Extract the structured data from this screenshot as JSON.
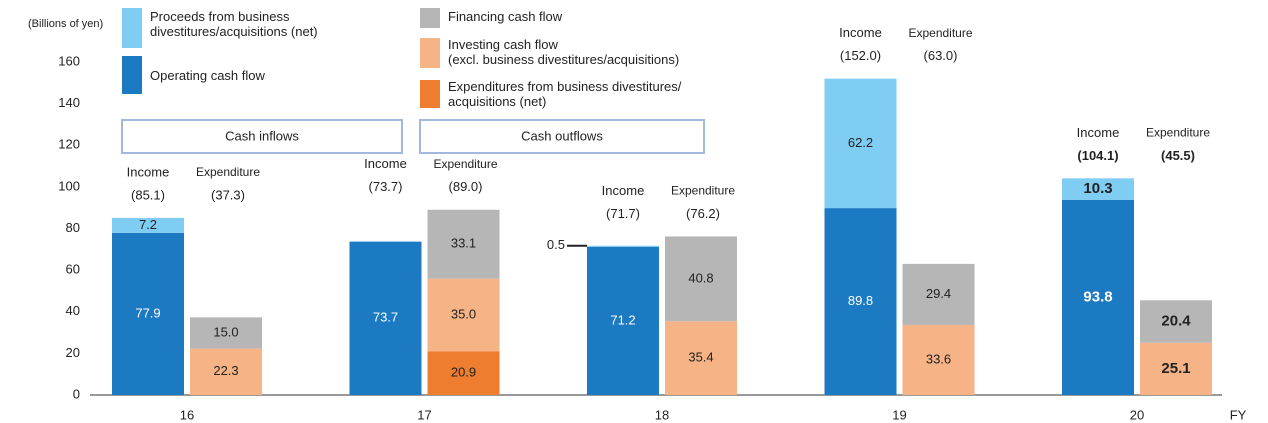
{
  "chart_data": {
    "type": "grouped_stacked_bar",
    "y_label": "(Billions of yen)",
    "x_label": "FY",
    "categories": [
      "16",
      "17",
      "18",
      "19",
      "20"
    ],
    "emphasized": "20",
    "ylim": [
      0,
      160
    ],
    "yticks": [
      0,
      20,
      40,
      60,
      80,
      100,
      120,
      140,
      160
    ],
    "stacks": {
      "income": "Income",
      "expenditure": "Expenditure"
    },
    "stack_boxes": {
      "income": "Cash inflows",
      "expenditure": "Cash outflows"
    },
    "income_totals": [
      85.1,
      73.7,
      71.7,
      152.0,
      104.1
    ],
    "income_total_labels": [
      "(85.1)",
      "(73.7)",
      "(71.7)",
      "(152.0)",
      "(104.1)"
    ],
    "expenditure_totals": [
      37.3,
      89.0,
      76.2,
      63.0,
      45.5
    ],
    "expenditure_total_labels": [
      "(37.3)",
      "(89.0)",
      "(76.2)",
      "(63.0)",
      "(45.5)"
    ],
    "series": [
      {
        "name": "Proceeds from business\ndivestitures/acquisitions (net)",
        "stack": "income",
        "color": "#7fcdf2",
        "text_color": "#222222",
        "values": [
          7.2,
          null,
          0.5,
          62.2,
          10.3
        ],
        "value_labels": [
          "7.2",
          null,
          "0.5",
          "62.2",
          "10.3"
        ]
      },
      {
        "name": "Operating cash flow",
        "stack": "income",
        "color": "#1c7ac3",
        "text_color": "#ffffff",
        "values": [
          77.9,
          73.7,
          71.2,
          89.8,
          93.8
        ],
        "value_labels": [
          "77.9",
          "73.7",
          "71.2",
          "89.8",
          "93.8"
        ]
      },
      {
        "name": "Financing cash flow",
        "stack": "expenditure",
        "color": "#b6b6b6",
        "text_color": "#222222",
        "values": [
          15.0,
          33.1,
          40.8,
          29.4,
          20.4
        ],
        "value_labels": [
          "15.0",
          "33.1",
          "40.8",
          "29.4",
          "20.4"
        ]
      },
      {
        "name": "Investing cash flow\n(excl. business divestitures/acquisitions)",
        "stack": "expenditure",
        "color": "#f5b386",
        "text_color": "#222222",
        "values": [
          22.3,
          35.0,
          35.4,
          33.6,
          25.1
        ],
        "value_labels": [
          "22.3",
          "35.0",
          "35.4",
          "33.6",
          "25.1"
        ]
      },
      {
        "name": "Expenditures from business divestitures/\nacquisitions (net)",
        "stack": "expenditure",
        "color": "#ee7d30",
        "text_color": "#222222",
        "values": [
          null,
          20.9,
          null,
          null,
          null
        ],
        "value_labels": [
          null,
          "20.9",
          null,
          null,
          null
        ]
      }
    ]
  }
}
